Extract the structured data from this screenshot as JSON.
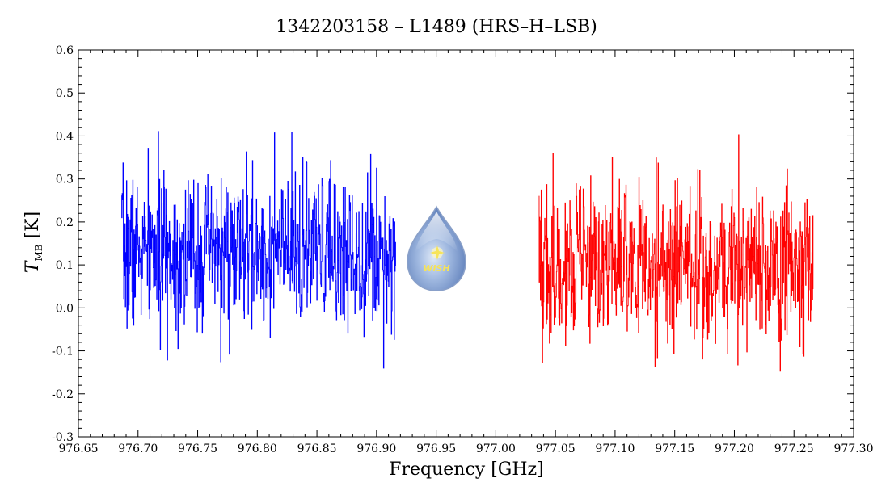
{
  "chart_data": {
    "type": "line",
    "title": "1342203158 – L1489 (HRS–H–LSB)",
    "xlabel": "Frequency [GHz]",
    "ylabel": {
      "symbol": "T",
      "subscript": "MB",
      "unit": "[K]"
    },
    "xlim": [
      976.65,
      977.3
    ],
    "ylim": [
      -0.3,
      0.6
    ],
    "x_ticks": [
      "976.65",
      "976.70",
      "976.75",
      "976.80",
      "976.85",
      "976.90",
      "976.95",
      "977.00",
      "977.05",
      "977.10",
      "977.15",
      "977.20",
      "977.25",
      "977.30"
    ],
    "y_ticks": [
      "-0.3",
      "-0.2",
      "-0.1",
      "0.0",
      "0.1",
      "0.2",
      "0.3",
      "0.4",
      "0.5",
      "0.6"
    ],
    "grid": false,
    "series": [
      {
        "color": "#0000ff",
        "x_range": [
          976.686,
          976.916
        ],
        "n_points": 700,
        "mean": 0.13,
        "noise_std": 0.09,
        "y_min": -0.18,
        "y_max": 0.43,
        "seed": 7
      },
      {
        "color": "#ff0000",
        "x_range": [
          977.036,
          977.266
        ],
        "n_points": 700,
        "mean": 0.1,
        "noise_std": 0.095,
        "y_min": -0.22,
        "y_max": 0.48,
        "seed": 19
      }
    ],
    "logo": {
      "text": "WISH",
      "icon": "water-drop-logo"
    }
  }
}
